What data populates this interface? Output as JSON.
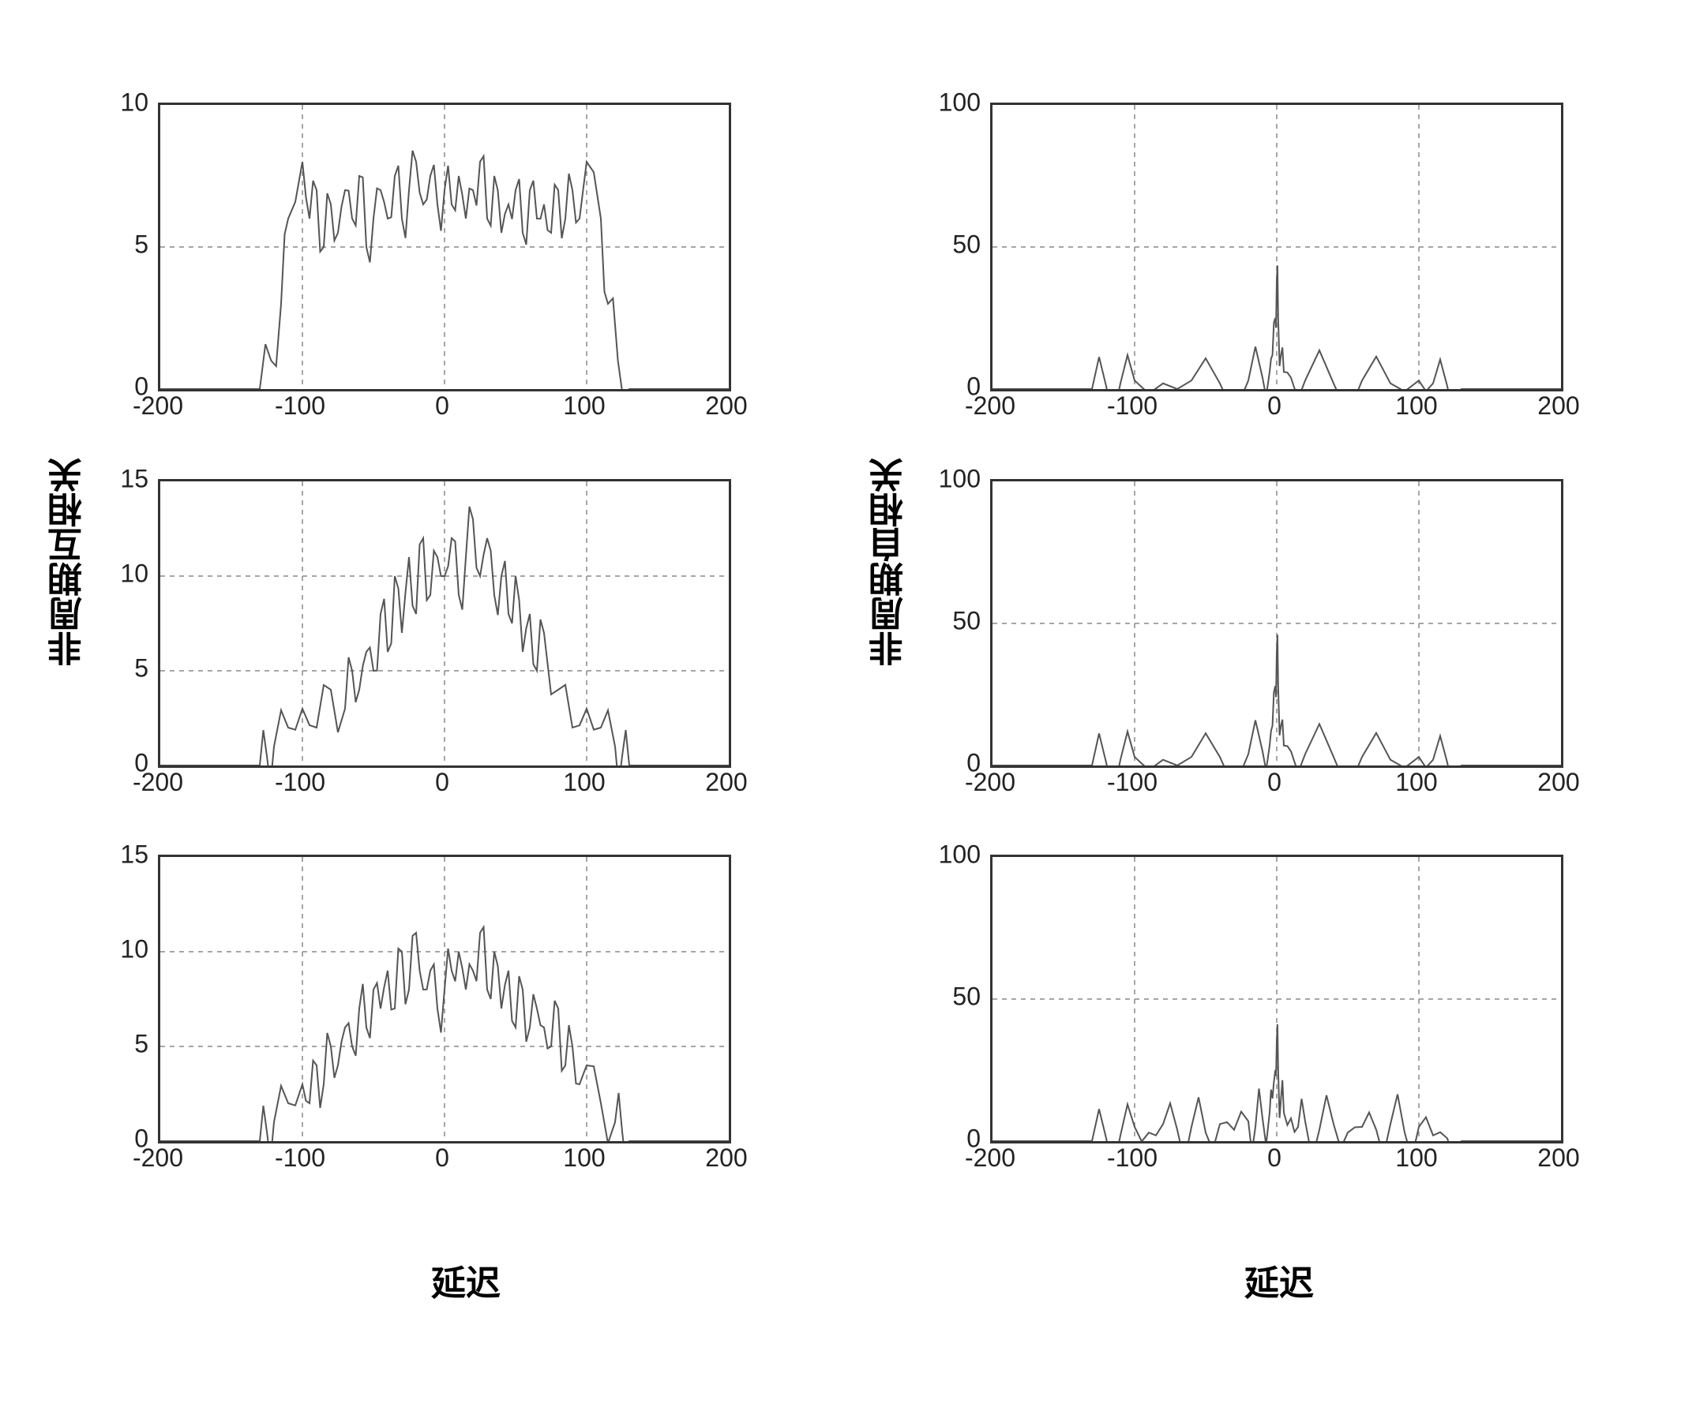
{
  "figure": {
    "background_color": "#ffffff",
    "border_color": "#333333",
    "grid_color": "#888888",
    "signal_color": "#555555",
    "tick_color": "#222222",
    "tick_fontsize": 32,
    "label_fontsize": 44,
    "label_fontweight": "bold",
    "grid_dasharray": "6,6",
    "layout": "3x2",
    "left_column_ylabel": "非周期互相关",
    "right_column_ylabel": "非周期自相关",
    "xlabel": "延迟",
    "x_ticks": [
      -200,
      -100,
      0,
      100,
      200
    ],
    "panels": [
      {
        "row": 0,
        "col": 0,
        "type": "line",
        "xlim": [
          -200,
          200
        ],
        "ylim": [
          0,
          10
        ],
        "y_ticks": [
          0,
          5,
          10
        ],
        "data_x": [
          -200,
          -130,
          -122,
          -115,
          -110,
          -100,
          -95,
          -90,
          -85,
          -80,
          -75,
          -70,
          -65,
          -60,
          -55,
          -50,
          -45,
          -40,
          -35,
          -30,
          -25,
          -20,
          -15,
          -10,
          -5,
          0,
          5,
          10,
          15,
          20,
          25,
          30,
          35,
          40,
          45,
          50,
          55,
          60,
          65,
          70,
          75,
          80,
          85,
          90,
          95,
          100,
          110,
          115,
          122,
          130,
          200
        ],
        "data_y": [
          0,
          0,
          1,
          3,
          6,
          8,
          6,
          7,
          5,
          6.5,
          5.5,
          7,
          6,
          7.5,
          5,
          6,
          7,
          6,
          7.5,
          6,
          7,
          8,
          6.5,
          7.5,
          6.5,
          7,
          6.5,
          7.5,
          6,
          7,
          8,
          6,
          7.5,
          5.5,
          6.5,
          7,
          5.5,
          7,
          6,
          6.5,
          5.5,
          7,
          6,
          7,
          6,
          8,
          6,
          3,
          1,
          0,
          0
        ]
      },
      {
        "row": 0,
        "col": 1,
        "type": "line",
        "xlim": [
          -200,
          200
        ],
        "ylim": [
          0,
          100
        ],
        "y_ticks": [
          0,
          50,
          100
        ],
        "data_x": [
          -200,
          -130,
          -120,
          -110,
          -100,
          -80,
          -60,
          -40,
          -20,
          -10,
          -5,
          -3,
          -1,
          0,
          1,
          3,
          5,
          10,
          20,
          40,
          60,
          80,
          100,
          110,
          120,
          130,
          200
        ],
        "data_y": [
          0,
          0,
          1,
          2,
          3,
          2,
          3,
          2,
          3,
          4,
          6,
          12,
          25,
          38,
          25,
          12,
          6,
          4,
          3,
          2,
          3,
          2,
          3,
          2,
          1,
          0,
          0
        ]
      },
      {
        "row": 1,
        "col": 0,
        "type": "line",
        "xlim": [
          -200,
          200
        ],
        "ylim": [
          0,
          15
        ],
        "y_ticks": [
          0,
          5,
          10,
          15
        ],
        "data_x": [
          -200,
          -130,
          -125,
          -120,
          -110,
          -100,
          -90,
          -80,
          -70,
          -65,
          -60,
          -55,
          -50,
          -45,
          -40,
          -35,
          -30,
          -25,
          -20,
          -15,
          -10,
          -5,
          0,
          5,
          10,
          15,
          20,
          25,
          30,
          35,
          40,
          45,
          50,
          55,
          60,
          65,
          70,
          80,
          90,
          100,
          110,
          120,
          125,
          130,
          200
        ],
        "data_y": [
          0,
          0,
          0.5,
          1,
          2,
          3,
          2,
          4,
          3,
          5,
          4,
          6,
          5,
          8,
          6,
          10,
          7,
          11,
          8,
          12,
          9,
          11,
          10,
          12,
          9,
          11,
          13,
          10,
          12,
          9,
          10,
          8,
          10,
          6,
          8,
          5,
          7,
          4,
          2,
          3,
          2,
          1,
          0.5,
          0,
          0
        ]
      },
      {
        "row": 1,
        "col": 1,
        "type": "line",
        "xlim": [
          -200,
          200
        ],
        "ylim": [
          0,
          100
        ],
        "y_ticks": [
          0,
          50,
          100
        ],
        "data_x": [
          -200,
          -130,
          -120,
          -110,
          -100,
          -80,
          -60,
          -40,
          -20,
          -10,
          -5,
          -3,
          -1,
          0,
          1,
          3,
          5,
          10,
          20,
          40,
          60,
          80,
          100,
          110,
          120,
          130,
          200
        ],
        "data_y": [
          0,
          0,
          1,
          2,
          3,
          2,
          3,
          3,
          4,
          5,
          7,
          14,
          28,
          40,
          28,
          14,
          7,
          5,
          4,
          3,
          3,
          2,
          3,
          2,
          1,
          0,
          0
        ]
      },
      {
        "row": 2,
        "col": 0,
        "type": "line",
        "xlim": [
          -200,
          200
        ],
        "ylim": [
          0,
          15
        ],
        "y_ticks": [
          0,
          5,
          10,
          15
        ],
        "data_x": [
          -200,
          -130,
          -125,
          -120,
          -110,
          -100,
          -95,
          -90,
          -85,
          -80,
          -75,
          -70,
          -65,
          -60,
          -55,
          -50,
          -45,
          -40,
          -35,
          -30,
          -25,
          -20,
          -15,
          -10,
          -5,
          0,
          5,
          10,
          15,
          20,
          25,
          30,
          35,
          40,
          45,
          50,
          55,
          60,
          65,
          70,
          75,
          80,
          85,
          90,
          95,
          100,
          110,
          120,
          125,
          130,
          200
        ],
        "data_y": [
          0,
          0,
          0.5,
          1,
          2,
          3,
          2,
          4,
          3,
          5,
          4,
          6,
          5,
          7,
          6,
          8,
          7,
          9,
          7,
          10,
          8,
          11,
          8,
          9,
          7,
          8,
          9,
          10,
          8,
          9,
          11,
          8,
          10,
          7,
          9,
          6,
          8,
          6,
          7,
          6,
          5,
          7,
          4,
          5,
          3,
          4,
          2,
          1,
          0.5,
          0,
          0
        ]
      },
      {
        "row": 2,
        "col": 1,
        "type": "line",
        "xlim": [
          -200,
          200
        ],
        "ylim": [
          0,
          100
        ],
        "y_ticks": [
          0,
          50,
          100
        ],
        "data_x": [
          -200,
          -130,
          -120,
          -110,
          -100,
          -90,
          -80,
          -70,
          -60,
          -50,
          -40,
          -30,
          -20,
          -15,
          -10,
          -5,
          -3,
          -1,
          0,
          1,
          3,
          5,
          10,
          15,
          20,
          30,
          40,
          50,
          60,
          70,
          80,
          90,
          100,
          110,
          120,
          130,
          200
        ],
        "data_y": [
          0,
          0,
          1,
          2,
          5,
          3,
          6,
          4,
          5,
          3,
          6,
          4,
          7,
          5,
          8,
          10,
          15,
          25,
          35,
          25,
          15,
          10,
          8,
          5,
          7,
          4,
          6,
          3,
          5,
          4,
          6,
          3,
          5,
          2,
          1,
          0,
          0
        ]
      }
    ]
  }
}
